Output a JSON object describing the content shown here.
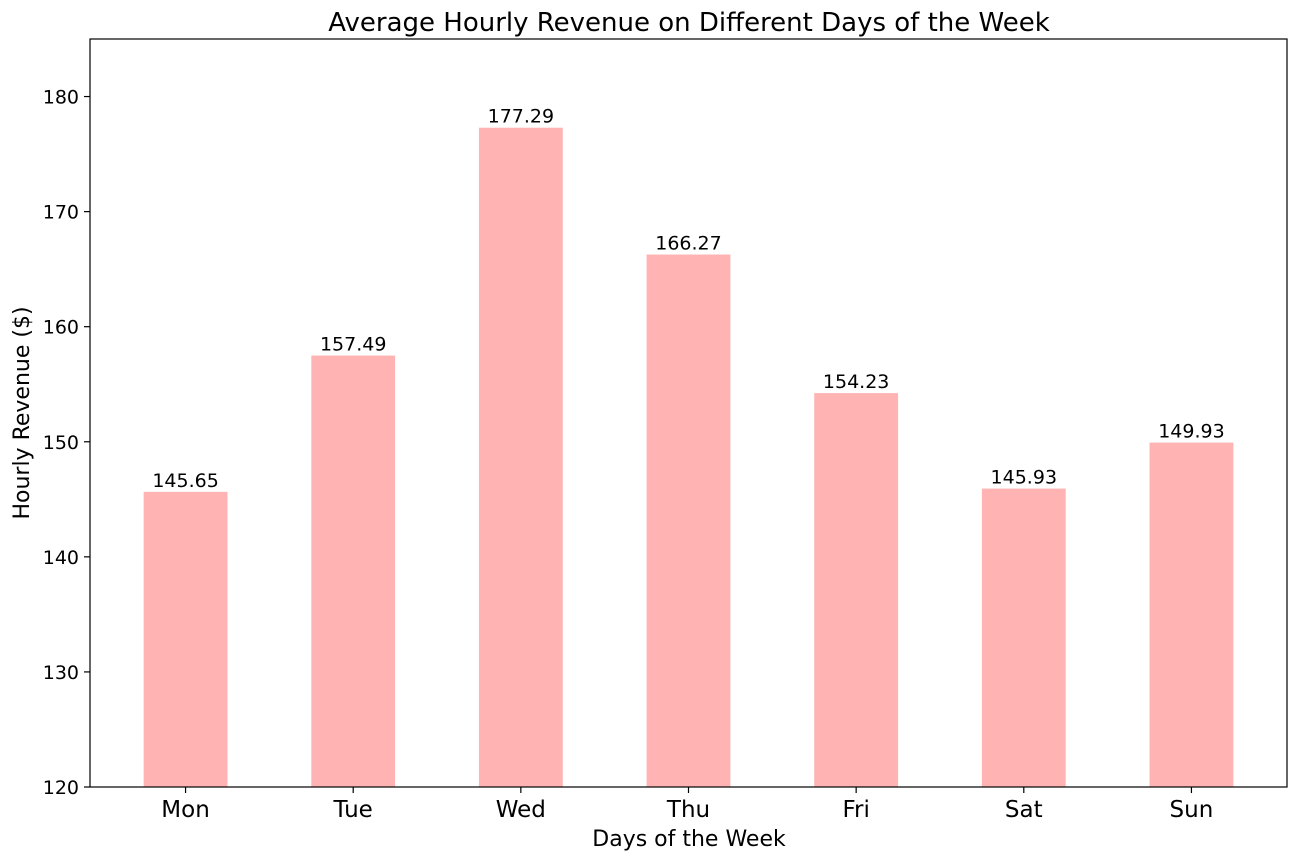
{
  "chart_data": {
    "type": "bar",
    "title": "Average Hourly Revenue on Different Days of the Week",
    "xlabel": "Days of the Week",
    "ylabel": "Hourly Revenue ($)",
    "categories": [
      "Mon",
      "Tue",
      "Wed",
      "Thu",
      "Fri",
      "Sat",
      "Sun"
    ],
    "values": [
      145.65,
      157.49,
      177.29,
      166.27,
      154.23,
      145.93,
      149.93
    ],
    "value_labels": [
      "145.65",
      "157.49",
      "177.29",
      "166.27",
      "154.23",
      "145.93",
      "149.93"
    ],
    "ylim": [
      120,
      185
    ],
    "yticks": [
      120,
      130,
      140,
      150,
      160,
      170,
      180
    ],
    "grid": false,
    "bar_color": "#ffb3b3"
  }
}
